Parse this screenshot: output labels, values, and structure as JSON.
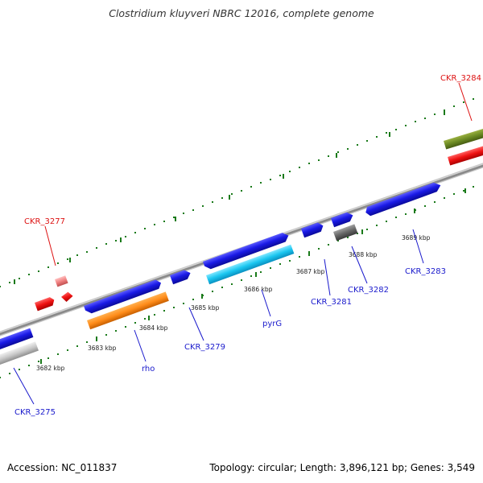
{
  "title": "Clostridium kluyveri NBRC 12016, complete genome",
  "footer": {
    "accession": "Accession: NC_011837",
    "summary": "Topology: circular; Length: 3,896,121 bp; Genes: 3,549"
  },
  "colors": {
    "tick": "#1a7a1a",
    "backbone": "#808080",
    "blue_gene": "#1a1adf",
    "label_blue": "#1a1acc",
    "label_red": "#dd1111"
  },
  "kbp_labels": [
    "3682 kbp",
    "3683 kbp",
    "3684 kbp",
    "3685 kbp",
    "3686 kbp",
    "3687 kbp",
    "3688 kbp",
    "3689 kbp"
  ],
  "gene_labels": {
    "ckr_3284": "CKR_3284",
    "ckr_3277": "CKR_3277",
    "ckr_3275": "CKR_3275",
    "rho": "rho",
    "ckr_3279": "CKR_3279",
    "pyrg": "pyrG",
    "ckr_3281": "CKR_3281",
    "ckr_3282": "CKR_3282",
    "ckr_3283": "CKR_3283"
  }
}
